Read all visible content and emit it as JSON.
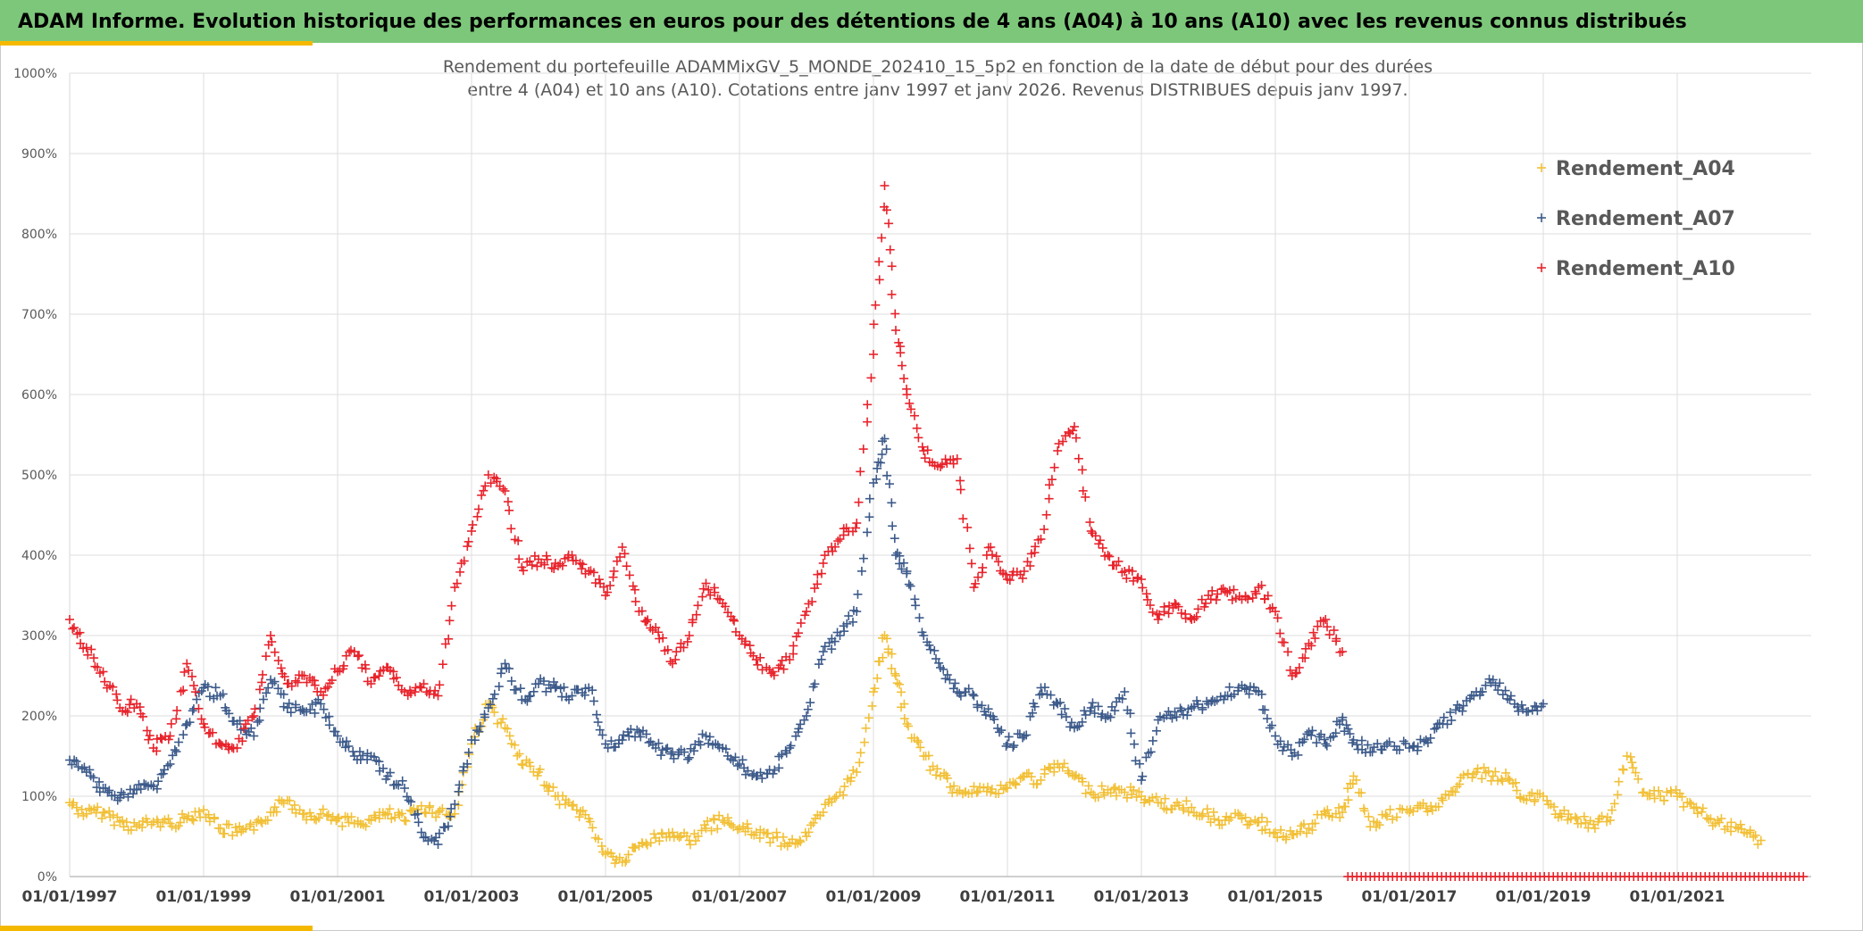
{
  "banner": {
    "text": "ADAM Informe. Evolution historique des performances en euros pour des détentions de 4 ans (A04) à 10 ans (A10) avec les revenus connus distribués"
  },
  "colors": {
    "banner": "#7dc77a",
    "accent": "#f5b800",
    "a04": "#f2c037",
    "a07": "#3c5a8a",
    "a10": "#e8232b",
    "grid": "#dddddd"
  },
  "chart_data": {
    "type": "scatter",
    "title_line1": "Rendement du portefeuille ADAMMixGV_5_MONDE_202410_15_5p2  en fonction de la date de début pour des durées",
    "title_line2": "entre 4 (A04) et 10 ans (A10). Cotations entre janv 1997 et janv 2026. Revenus DISTRIBUES depuis janv 1997.",
    "xlabel": "",
    "ylabel": "",
    "xlim": [
      "1997-01-01",
      "2023-01-01"
    ],
    "ylim": [
      0,
      1000
    ],
    "y_ticks": [
      "0%",
      "100%",
      "200%",
      "300%",
      "400%",
      "500%",
      "600%",
      "700%",
      "800%",
      "900%",
      "1000%"
    ],
    "x_ticks": [
      "01/01/1997",
      "01/01/1999",
      "01/01/2001",
      "01/01/2003",
      "01/01/2005",
      "01/01/2007",
      "01/01/2009",
      "01/01/2011",
      "01/01/2013",
      "01/01/2015",
      "01/01/2017",
      "01/01/2019",
      "01/01/2021"
    ],
    "grid": true,
    "legend_position": "top-right",
    "marker": "+",
    "series": [
      {
        "name": "Rendement_A04",
        "points": [
          [
            "1997-01",
            92
          ],
          [
            "1997-04",
            78
          ],
          [
            "1997-07",
            80
          ],
          [
            "1997-10",
            68
          ],
          [
            "1998-01",
            62
          ],
          [
            "1998-04",
            68
          ],
          [
            "1998-07",
            66
          ],
          [
            "1998-10",
            72
          ],
          [
            "1999-01",
            83
          ],
          [
            "1999-04",
            60
          ],
          [
            "1999-07",
            55
          ],
          [
            "1999-10",
            58
          ],
          [
            "2000-01",
            80
          ],
          [
            "2000-04",
            95
          ],
          [
            "2000-07",
            78
          ],
          [
            "2000-10",
            78
          ],
          [
            "2001-01",
            72
          ],
          [
            "2001-04",
            66
          ],
          [
            "2001-07",
            70
          ],
          [
            "2001-10",
            78
          ],
          [
            "2002-01",
            70
          ],
          [
            "2002-04",
            88
          ],
          [
            "2002-07",
            80
          ],
          [
            "2002-10",
            78
          ],
          [
            "2003-01",
            165
          ],
          [
            "2003-04",
            215
          ],
          [
            "2003-07",
            185
          ],
          [
            "2003-10",
            140
          ],
          [
            "2004-01",
            130
          ],
          [
            "2004-04",
            100
          ],
          [
            "2004-07",
            88
          ],
          [
            "2004-10",
            72
          ],
          [
            "2005-01",
            28
          ],
          [
            "2005-04",
            18
          ],
          [
            "2005-07",
            38
          ],
          [
            "2005-10",
            48
          ],
          [
            "2006-01",
            55
          ],
          [
            "2006-04",
            45
          ],
          [
            "2006-07",
            60
          ],
          [
            "2006-10",
            70
          ],
          [
            "2007-01",
            60
          ],
          [
            "2007-04",
            55
          ],
          [
            "2007-07",
            48
          ],
          [
            "2007-10",
            42
          ],
          [
            "2008-01",
            50
          ],
          [
            "2008-04",
            80
          ],
          [
            "2008-07",
            105
          ],
          [
            "2008-10",
            130
          ],
          [
            "2009-01",
            230
          ],
          [
            "2009-03",
            300
          ],
          [
            "2009-05",
            250
          ],
          [
            "2009-07",
            190
          ],
          [
            "2009-10",
            150
          ],
          [
            "2010-01",
            125
          ],
          [
            "2010-04",
            105
          ],
          [
            "2010-07",
            112
          ],
          [
            "2010-10",
            105
          ],
          [
            "2011-01",
            110
          ],
          [
            "2011-04",
            125
          ],
          [
            "2011-07",
            120
          ],
          [
            "2011-10",
            140
          ],
          [
            "2012-01",
            125
          ],
          [
            "2012-04",
            105
          ],
          [
            "2012-07",
            108
          ],
          [
            "2012-10",
            105
          ],
          [
            "2013-01",
            100
          ],
          [
            "2013-04",
            92
          ],
          [
            "2013-07",
            88
          ],
          [
            "2013-10",
            86
          ],
          [
            "2014-01",
            75
          ],
          [
            "2014-04",
            70
          ],
          [
            "2014-07",
            72
          ],
          [
            "2014-10",
            68
          ],
          [
            "2015-01",
            55
          ],
          [
            "2015-04",
            52
          ],
          [
            "2015-07",
            60
          ],
          [
            "2015-10",
            78
          ],
          [
            "2016-01",
            80
          ],
          [
            "2016-03",
            125
          ],
          [
            "2016-06",
            62
          ],
          [
            "2016-09",
            75
          ],
          [
            "2017-01",
            80
          ],
          [
            "2017-04",
            85
          ],
          [
            "2017-07",
            95
          ],
          [
            "2017-10",
            115
          ],
          [
            "2018-01",
            130
          ],
          [
            "2018-04",
            125
          ],
          [
            "2018-07",
            120
          ],
          [
            "2018-10",
            95
          ],
          [
            "2019-01",
            100
          ],
          [
            "2019-04",
            78
          ],
          [
            "2019-07",
            72
          ],
          [
            "2019-10",
            65
          ],
          [
            "2020-01",
            70
          ],
          [
            "2020-04",
            150
          ],
          [
            "2020-07",
            105
          ],
          [
            "2020-10",
            100
          ],
          [
            "2021-01",
            100
          ],
          [
            "2021-04",
            85
          ],
          [
            "2021-07",
            72
          ],
          [
            "2021-10",
            62
          ],
          [
            "2022-01",
            55
          ],
          [
            "2022-04",
            45
          ]
        ]
      },
      {
        "name": "Rendement_A07",
        "points": [
          [
            "1997-01",
            145
          ],
          [
            "1997-04",
            130
          ],
          [
            "1997-07",
            110
          ],
          [
            "1997-10",
            98
          ],
          [
            "1998-01",
            108
          ],
          [
            "1998-04",
            112
          ],
          [
            "1998-07",
            140
          ],
          [
            "1998-10",
            190
          ],
          [
            "1999-01",
            235
          ],
          [
            "1999-04",
            225
          ],
          [
            "1999-07",
            190
          ],
          [
            "1999-10",
            175
          ],
          [
            "2000-01",
            245
          ],
          [
            "2000-04",
            210
          ],
          [
            "2000-07",
            205
          ],
          [
            "2000-10",
            215
          ],
          [
            "2001-01",
            175
          ],
          [
            "2001-04",
            150
          ],
          [
            "2001-07",
            150
          ],
          [
            "2001-10",
            125
          ],
          [
            "2002-01",
            110
          ],
          [
            "2002-04",
            55
          ],
          [
            "2002-07",
            40
          ],
          [
            "2002-10",
            90
          ],
          [
            "2003-01",
            170
          ],
          [
            "2003-04",
            210
          ],
          [
            "2003-07",
            265
          ],
          [
            "2003-10",
            220
          ],
          [
            "2004-01",
            240
          ],
          [
            "2004-04",
            235
          ],
          [
            "2004-07",
            225
          ],
          [
            "2004-10",
            235
          ],
          [
            "2005-01",
            165
          ],
          [
            "2005-04",
            170
          ],
          [
            "2005-07",
            180
          ],
          [
            "2005-10",
            160
          ],
          [
            "2006-01",
            155
          ],
          [
            "2006-04",
            148
          ],
          [
            "2006-07",
            175
          ],
          [
            "2006-10",
            160
          ],
          [
            "2007-01",
            140
          ],
          [
            "2007-04",
            125
          ],
          [
            "2007-07",
            128
          ],
          [
            "2007-10",
            160
          ],
          [
            "2008-01",
            200
          ],
          [
            "2008-04",
            280
          ],
          [
            "2008-07",
            300
          ],
          [
            "2008-10",
            330
          ],
          [
            "2009-01",
            490
          ],
          [
            "2009-03",
            545
          ],
          [
            "2009-05",
            400
          ],
          [
            "2009-07",
            380
          ],
          [
            "2009-10",
            300
          ],
          [
            "2010-01",
            260
          ],
          [
            "2010-04",
            230
          ],
          [
            "2010-07",
            225
          ],
          [
            "2010-10",
            200
          ],
          [
            "2011-01",
            165
          ],
          [
            "2011-04",
            175
          ],
          [
            "2011-07",
            235
          ],
          [
            "2011-10",
            215
          ],
          [
            "2012-01",
            185
          ],
          [
            "2012-04",
            210
          ],
          [
            "2012-07",
            200
          ],
          [
            "2012-10",
            230
          ],
          [
            "2013-01",
            120
          ],
          [
            "2013-04",
            195
          ],
          [
            "2013-07",
            205
          ],
          [
            "2013-10",
            210
          ],
          [
            "2014-01",
            215
          ],
          [
            "2014-04",
            225
          ],
          [
            "2014-07",
            238
          ],
          [
            "2014-10",
            230
          ],
          [
            "2015-01",
            175
          ],
          [
            "2015-04",
            150
          ],
          [
            "2015-07",
            180
          ],
          [
            "2015-10",
            165
          ],
          [
            "2016-01",
            195
          ],
          [
            "2016-03",
            170
          ],
          [
            "2016-06",
            155
          ],
          [
            "2016-09",
            165
          ],
          [
            "2017-01",
            160
          ],
          [
            "2017-04",
            170
          ],
          [
            "2017-07",
            190
          ],
          [
            "2017-10",
            210
          ],
          [
            "2018-01",
            230
          ],
          [
            "2018-04",
            245
          ],
          [
            "2018-07",
            220
          ],
          [
            "2018-10",
            205
          ],
          [
            "2019-01",
            215
          ]
        ]
      },
      {
        "name": "Rendement_A10",
        "points": [
          [
            "1997-01",
            320
          ],
          [
            "1997-04",
            285
          ],
          [
            "1997-07",
            255
          ],
          [
            "1997-10",
            210
          ],
          [
            "1998-01",
            215
          ],
          [
            "1998-04",
            160
          ],
          [
            "1998-07",
            175
          ],
          [
            "1998-10",
            265
          ],
          [
            "1999-01",
            190
          ],
          [
            "1999-04",
            165
          ],
          [
            "1999-07",
            160
          ],
          [
            "1999-10",
            200
          ],
          [
            "2000-01",
            300
          ],
          [
            "2000-04",
            240
          ],
          [
            "2000-07",
            250
          ],
          [
            "2000-10",
            230
          ],
          [
            "2001-01",
            255
          ],
          [
            "2001-04",
            280
          ],
          [
            "2001-07",
            240
          ],
          [
            "2001-10",
            260
          ],
          [
            "2002-01",
            230
          ],
          [
            "2002-04",
            235
          ],
          [
            "2002-07",
            225
          ],
          [
            "2002-10",
            360
          ],
          [
            "2003-01",
            430
          ],
          [
            "2003-04",
            500
          ],
          [
            "2003-07",
            480
          ],
          [
            "2003-10",
            385
          ],
          [
            "2004-01",
            395
          ],
          [
            "2004-04",
            390
          ],
          [
            "2004-07",
            400
          ],
          [
            "2004-10",
            380
          ],
          [
            "2005-01",
            350
          ],
          [
            "2005-04",
            410
          ],
          [
            "2005-07",
            330
          ],
          [
            "2005-10",
            310
          ],
          [
            "2006-01",
            265
          ],
          [
            "2006-04",
            300
          ],
          [
            "2006-07",
            365
          ],
          [
            "2006-10",
            340
          ],
          [
            "2007-01",
            300
          ],
          [
            "2007-04",
            270
          ],
          [
            "2007-07",
            255
          ],
          [
            "2007-10",
            270
          ],
          [
            "2008-01",
            330
          ],
          [
            "2008-04",
            390
          ],
          [
            "2008-07",
            420
          ],
          [
            "2008-10",
            440
          ],
          [
            "2009-01",
            650
          ],
          [
            "2009-03",
            860
          ],
          [
            "2009-05",
            680
          ],
          [
            "2009-07",
            600
          ],
          [
            "2009-10",
            530
          ],
          [
            "2010-01",
            510
          ],
          [
            "2010-04",
            520
          ],
          [
            "2010-07",
            360
          ],
          [
            "2010-10",
            410
          ],
          [
            "2011-01",
            370
          ],
          [
            "2011-04",
            380
          ],
          [
            "2011-07",
            420
          ],
          [
            "2011-10",
            530
          ],
          [
            "2012-01",
            560
          ],
          [
            "2012-04",
            430
          ],
          [
            "2012-07",
            400
          ],
          [
            "2012-10",
            380
          ],
          [
            "2013-01",
            370
          ],
          [
            "2013-04",
            320
          ],
          [
            "2013-07",
            340
          ],
          [
            "2013-10",
            320
          ],
          [
            "2014-01",
            350
          ],
          [
            "2014-04",
            355
          ],
          [
            "2014-07",
            345
          ],
          [
            "2014-10",
            360
          ],
          [
            "2015-01",
            330
          ],
          [
            "2015-04",
            250
          ],
          [
            "2015-07",
            290
          ],
          [
            "2015-10",
            320
          ],
          [
            "2016-01",
            280
          ]
        ]
      }
    ],
    "zero_band": {
      "from": "2016-02",
      "to": "2022-12",
      "value": 0
    }
  }
}
